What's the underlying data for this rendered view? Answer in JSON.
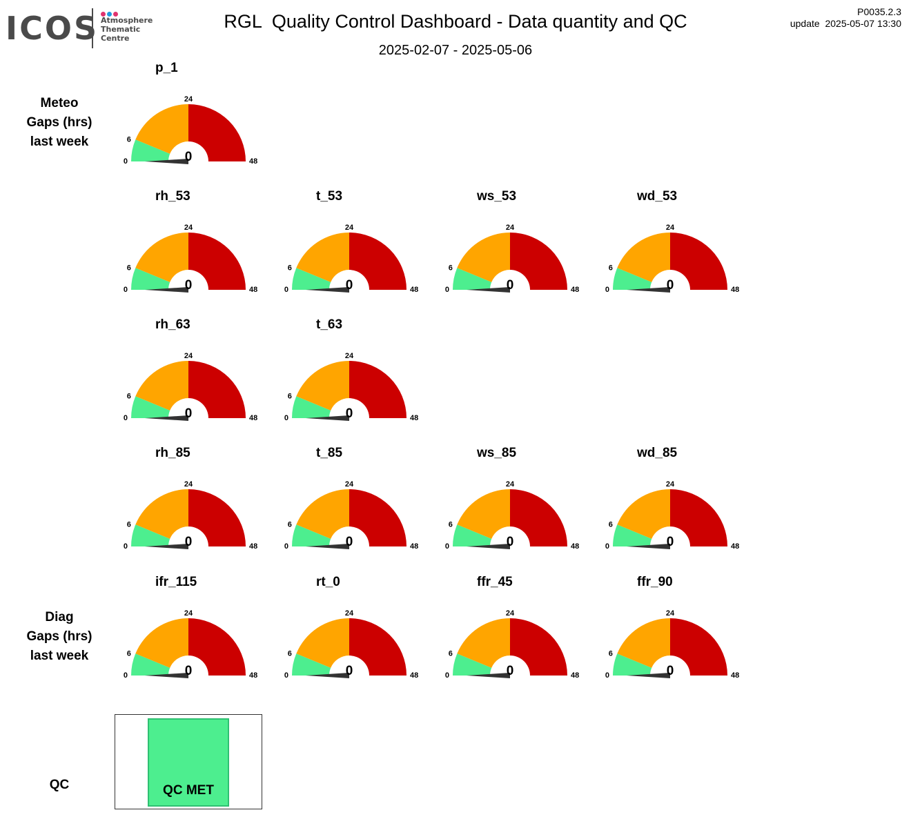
{
  "header": {
    "logo_word": "ICOS",
    "logo_lines": [
      "Atmosphere",
      "Thematic",
      "Centre"
    ],
    "logo_dot_colors": [
      "#e0336e",
      "#1f9be0",
      "#e0336e"
    ],
    "title": "RGL  Quality Control Dashboard - Data quantity and QC",
    "subtitle": "2025-02-07 - 2025-05-06",
    "version": "P0035.2.3",
    "update": "update  2025-05-07 13:30"
  },
  "row_labels": {
    "meteo": [
      "Meteo",
      "Gaps (hrs)",
      "last week"
    ],
    "diag": [
      "Diag",
      "Gaps (hrs)",
      "last week"
    ],
    "qc": "QC"
  },
  "colors": {
    "green": "#4dee8f",
    "orange": "#ffa500",
    "red": "#cc0000",
    "needle": "#333333"
  },
  "chart_data": {
    "type": "gauge",
    "scale": {
      "min": 0,
      "max": 48,
      "bands": [
        [
          0,
          6
        ],
        [
          6,
          24
        ],
        [
          24,
          48
        ]
      ],
      "tick_labels": [
        "0",
        "6",
        "24",
        "48"
      ]
    },
    "gauges": [
      {
        "name": "p_1",
        "value": 0,
        "row": 0,
        "col": 0
      },
      {
        "name": "rh_53",
        "value": 0,
        "row": 1,
        "col": 0
      },
      {
        "name": "t_53",
        "value": 0,
        "row": 1,
        "col": 1
      },
      {
        "name": "ws_53",
        "value": 0,
        "row": 1,
        "col": 2
      },
      {
        "name": "wd_53",
        "value": 0,
        "row": 1,
        "col": 3
      },
      {
        "name": "rh_63",
        "value": 0,
        "row": 2,
        "col": 0
      },
      {
        "name": "t_63",
        "value": 0,
        "row": 2,
        "col": 1
      },
      {
        "name": "rh_85",
        "value": 0,
        "row": 3,
        "col": 0
      },
      {
        "name": "t_85",
        "value": 0,
        "row": 3,
        "col": 1
      },
      {
        "name": "ws_85",
        "value": 0,
        "row": 3,
        "col": 2
      },
      {
        "name": "wd_85",
        "value": 0,
        "row": 3,
        "col": 3
      },
      {
        "name": "ifr_115",
        "value": 0,
        "row": 4,
        "col": 0
      },
      {
        "name": "rt_0",
        "value": 0,
        "row": 4,
        "col": 1
      },
      {
        "name": "ffr_45",
        "value": 0,
        "row": 4,
        "col": 2
      },
      {
        "name": "ffr_90",
        "value": 0,
        "row": 4,
        "col": 3
      }
    ]
  },
  "qc": {
    "label": "QC MET",
    "status_color": "#4dee8f"
  }
}
